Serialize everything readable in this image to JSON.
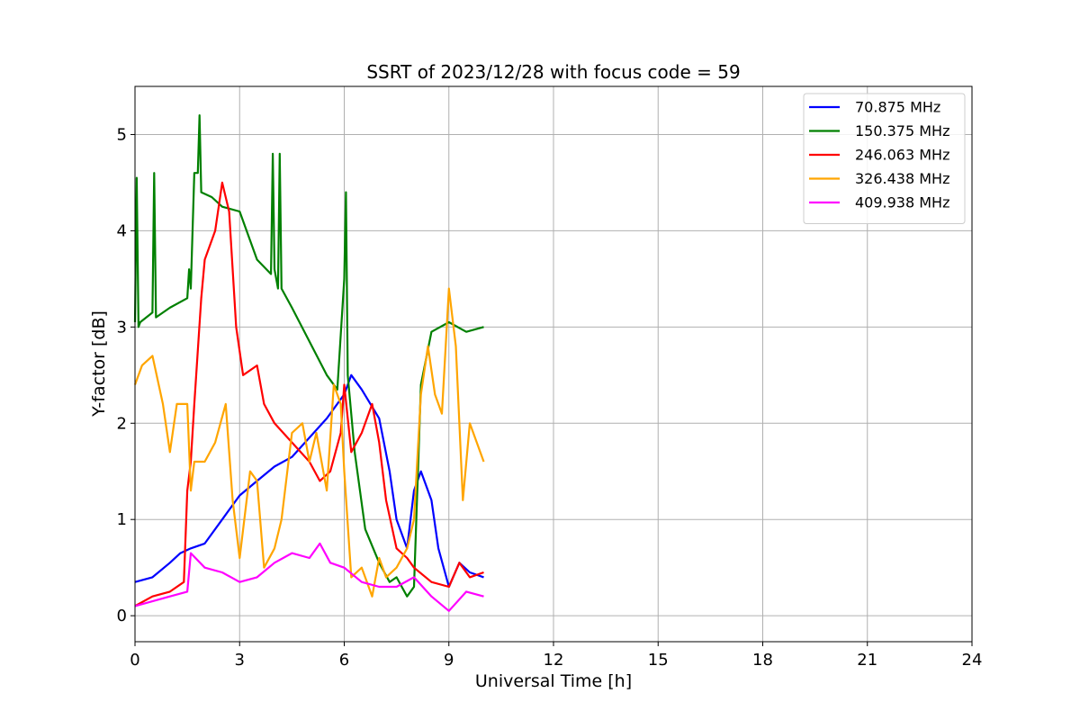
{
  "chart_data": {
    "type": "line",
    "title": "SSRT of 2023/12/28 with focus code = 59",
    "xlabel": "Universal Time [h]",
    "ylabel": "Y-factor [dB]",
    "xlim": [
      0,
      24
    ],
    "ylim": [
      -0.27,
      5.5
    ],
    "xticks": [
      0,
      3,
      6,
      9,
      12,
      15,
      18,
      21,
      24
    ],
    "yticks": [
      0,
      1,
      2,
      3,
      4,
      5
    ],
    "grid": true,
    "legend_position": "top-right",
    "series": [
      {
        "name": " 70.875 MHz",
        "color": "#0000ff",
        "x": [
          0,
          0.5,
          1,
          1.3,
          1.6,
          2,
          2.5,
          3,
          3.5,
          4,
          4.5,
          5,
          5.5,
          6,
          6.2,
          6.5,
          7,
          7.3,
          7.5,
          7.8,
          8,
          8.2,
          8.5,
          8.7,
          9,
          9.3,
          9.6,
          10
        ],
        "y": [
          0.35,
          0.4,
          0.55,
          0.65,
          0.7,
          0.75,
          1.0,
          1.25,
          1.4,
          1.55,
          1.65,
          1.85,
          2.05,
          2.3,
          2.5,
          2.35,
          2.05,
          1.5,
          1.0,
          0.7,
          1.3,
          1.5,
          1.2,
          0.7,
          0.3,
          0.55,
          0.45,
          0.4
        ]
      },
      {
        "name": "150.375 MHz",
        "color": "#008000",
        "x": [
          0,
          0.05,
          0.1,
          0.15,
          0.5,
          0.55,
          0.6,
          1,
          1.5,
          1.55,
          1.6,
          1.7,
          1.8,
          1.85,
          1.9,
          2.2,
          2.5,
          3,
          3.5,
          3.9,
          3.95,
          4.0,
          4.1,
          4.15,
          4.2,
          4.5,
          5,
          5.5,
          5.8,
          6.0,
          6.05,
          6.1,
          6.3,
          6.6,
          7,
          7.3,
          7.5,
          7.8,
          8,
          8.2,
          8.5,
          9,
          9.5,
          10
        ],
        "y": [
          3.05,
          4.55,
          3.0,
          3.05,
          3.15,
          4.6,
          3.1,
          3.2,
          3.3,
          3.6,
          3.4,
          4.6,
          4.6,
          5.2,
          4.4,
          4.35,
          4.25,
          4.2,
          3.7,
          3.55,
          4.8,
          3.6,
          3.4,
          4.8,
          3.4,
          3.2,
          2.85,
          2.5,
          2.35,
          3.5,
          4.4,
          2.5,
          1.7,
          0.9,
          0.55,
          0.35,
          0.4,
          0.2,
          0.3,
          2.4,
          2.95,
          3.05,
          2.95,
          3.0
        ]
      },
      {
        "name": "246.063 MHz",
        "color": "#ff0000",
        "x": [
          0,
          0.5,
          1,
          1.4,
          1.5,
          1.6,
          1.7,
          1.9,
          2.0,
          2.3,
          2.5,
          2.7,
          2.9,
          3.1,
          3.5,
          3.7,
          4.0,
          4.5,
          5,
          5.3,
          5.6,
          5.9,
          6.0,
          6.2,
          6.5,
          6.8,
          7.0,
          7.2,
          7.5,
          7.8,
          8.0,
          8.5,
          9,
          9.3,
          9.6,
          10
        ],
        "y": [
          0.1,
          0.2,
          0.25,
          0.35,
          1.3,
          1.6,
          2.2,
          3.3,
          3.7,
          4.0,
          4.5,
          4.2,
          3.0,
          2.5,
          2.6,
          2.2,
          2.0,
          1.8,
          1.6,
          1.4,
          1.5,
          1.9,
          2.4,
          1.7,
          1.9,
          2.2,
          1.8,
          1.2,
          0.7,
          0.6,
          0.5,
          0.35,
          0.3,
          0.55,
          0.4,
          0.45
        ]
      },
      {
        "name": "326.438 MHz",
        "color": "#ffa500",
        "x": [
          0,
          0.2,
          0.5,
          0.8,
          1.0,
          1.2,
          1.5,
          1.6,
          1.7,
          2.0,
          2.3,
          2.6,
          2.8,
          3.0,
          3.3,
          3.5,
          3.7,
          4.0,
          4.2,
          4.5,
          4.8,
          5.0,
          5.2,
          5.5,
          5.7,
          5.9,
          6.0,
          6.2,
          6.5,
          6.8,
          7.0,
          7.2,
          7.5,
          7.8,
          8.0,
          8.2,
          8.4,
          8.6,
          8.8,
          9.0,
          9.2,
          9.4,
          9.6,
          10
        ],
        "y": [
          2.4,
          2.6,
          2.7,
          2.2,
          1.7,
          2.2,
          2.2,
          1.3,
          1.6,
          1.6,
          1.8,
          2.2,
          1.2,
          0.6,
          1.5,
          1.4,
          0.5,
          0.7,
          1.0,
          1.9,
          2.0,
          1.6,
          1.9,
          1.3,
          2.4,
          2.2,
          1.5,
          0.4,
          0.5,
          0.2,
          0.6,
          0.4,
          0.5,
          0.7,
          1.0,
          2.3,
          2.8,
          2.3,
          2.1,
          3.4,
          2.8,
          1.2,
          2.0,
          1.6
        ]
      },
      {
        "name": "409.938 MHz",
        "color": "#ff00ff",
        "x": [
          0,
          0.5,
          1,
          1.5,
          1.6,
          2.0,
          2.5,
          3.0,
          3.5,
          4.0,
          4.5,
          5.0,
          5.3,
          5.6,
          6.0,
          6.5,
          7.0,
          7.5,
          8.0,
          8.5,
          9.0,
          9.5,
          10
        ],
        "y": [
          0.1,
          0.15,
          0.2,
          0.25,
          0.65,
          0.5,
          0.45,
          0.35,
          0.4,
          0.55,
          0.65,
          0.6,
          0.75,
          0.55,
          0.5,
          0.35,
          0.3,
          0.3,
          0.4,
          0.2,
          0.05,
          0.25,
          0.2
        ]
      }
    ]
  }
}
